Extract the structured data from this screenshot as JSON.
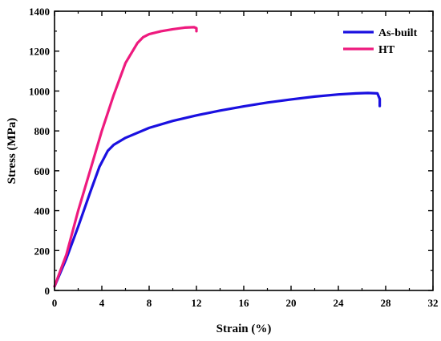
{
  "chart_data": {
    "type": "line",
    "title": "",
    "xlabel": "Strain (%)",
    "ylabel": "Stress (MPa)",
    "xlim": [
      0,
      32
    ],
    "ylim": [
      0,
      1400
    ],
    "xticks": [
      0,
      4,
      8,
      12,
      16,
      20,
      24,
      28,
      32
    ],
    "yticks": [
      0,
      200,
      400,
      600,
      800,
      1000,
      1200,
      1400
    ],
    "grid": false,
    "legend_position": "top-right",
    "series": [
      {
        "name": "As-built",
        "color": "#1a10e0",
        "x": [
          0.0,
          0.5,
          1.0,
          2.0,
          3.0,
          3.8,
          4.5,
          5.0,
          6.0,
          8.0,
          10.0,
          12.0,
          14.0,
          16.0,
          18.0,
          20.0,
          22.0,
          24.0,
          25.5,
          26.5,
          27.3,
          27.5,
          27.5
        ],
        "y": [
          20,
          90,
          160,
          320,
          490,
          620,
          700,
          730,
          765,
          815,
          850,
          878,
          902,
          923,
          942,
          958,
          972,
          983,
          988,
          990,
          988,
          960,
          925
        ]
      },
      {
        "name": "HT",
        "color": "#ee1a7e",
        "x": [
          0.0,
          0.5,
          1.0,
          2.0,
          3.0,
          4.0,
          5.0,
          6.0,
          7.0,
          7.5,
          8.0,
          9.0,
          10.0,
          11.0,
          11.8,
          12.0,
          12.0
        ],
        "y": [
          20,
          100,
          180,
          400,
          600,
          800,
          980,
          1140,
          1240,
          1270,
          1285,
          1300,
          1310,
          1318,
          1320,
          1315,
          1300
        ]
      }
    ]
  }
}
